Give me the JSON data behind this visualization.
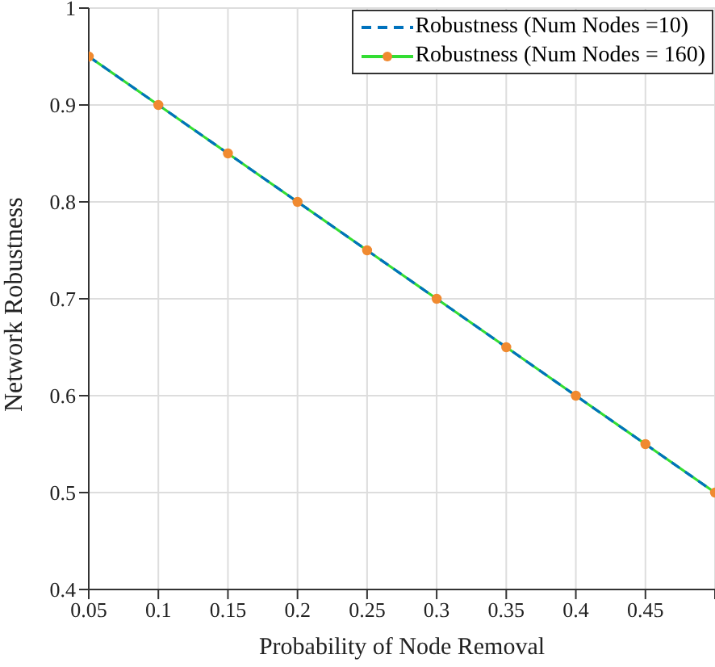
{
  "chart_data": {
    "type": "line",
    "xlabel": "Probability of Node Removal",
    "ylabel": "Network Robustness",
    "x": [
      0.05,
      0.1,
      0.15,
      0.2,
      0.25,
      0.3,
      0.35,
      0.4,
      0.45,
      0.5
    ],
    "series": [
      {
        "name": "Robustness (Num Nodes =10)",
        "color": "#0072bd",
        "line_style": "dashed",
        "marker": "none",
        "values": [
          0.95,
          0.9,
          0.85,
          0.8,
          0.75,
          0.7,
          0.65,
          0.6,
          0.55,
          0.5
        ]
      },
      {
        "name": "Robustness (Num Nodes = 160)",
        "color": "#33dd33",
        "line_style": "solid",
        "marker": "circle",
        "colors": [
          "#f08a30",
          "#f08a30",
          "#f08a30",
          "#f08a30",
          "#f08a30",
          "#f08a30",
          "#f08a30",
          "#f08a30",
          "#f08a30",
          "#f08a30"
        ],
        "values": [
          0.95,
          0.9,
          0.85,
          0.8,
          0.75,
          0.7,
          0.65,
          0.6,
          0.55,
          0.5
        ]
      }
    ],
    "xlim": [
      0.05,
      0.5
    ],
    "xticks": [
      0.05,
      0.1,
      0.15,
      0.2,
      0.25,
      0.3,
      0.35,
      0.4,
      0.45,
      {
        "value": 0.5,
        "label": null
      }
    ],
    "ylim": [
      0.4,
      1
    ],
    "yticks": [
      0.4,
      0.5,
      0.6,
      0.7,
      0.8,
      0.9,
      1
    ],
    "grid": true,
    "legend": "top right"
  }
}
